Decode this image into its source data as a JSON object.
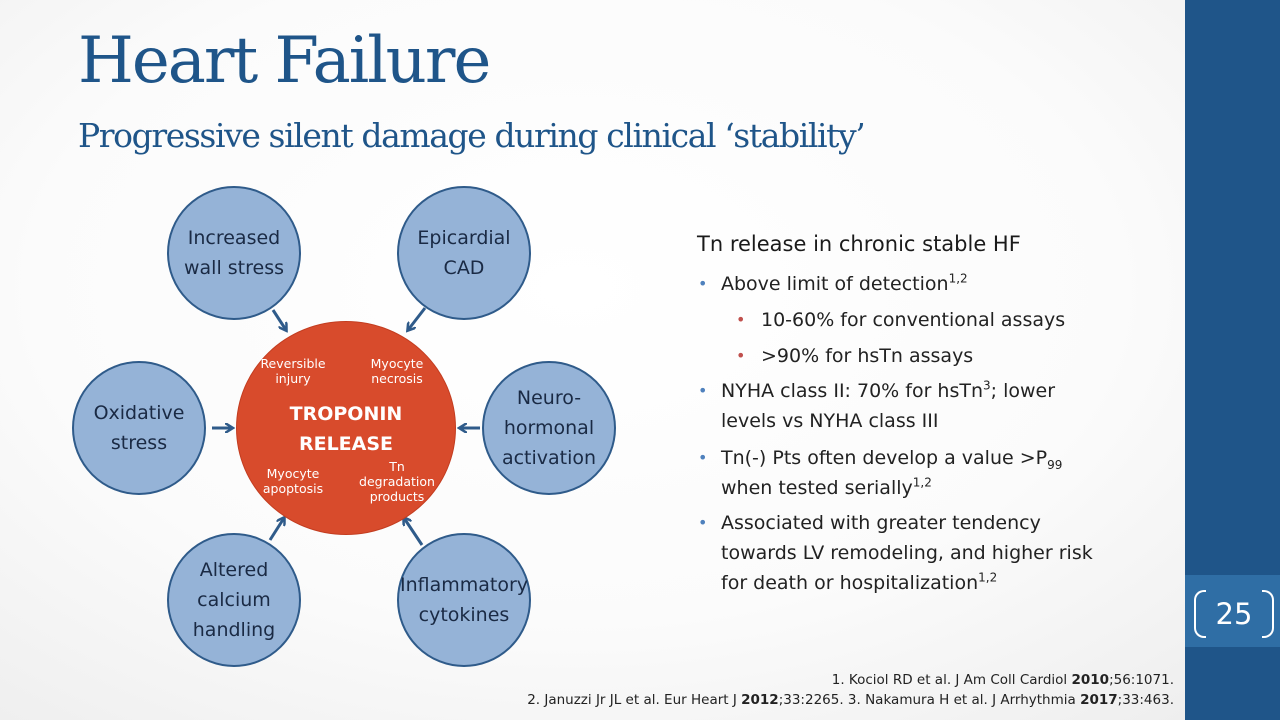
{
  "slide": {
    "title": "Heart Failure",
    "subtitle": "Progressive silent damage during clinical ‘stability’",
    "page_number": "25"
  },
  "diagram": {
    "center": {
      "label_line1": "TROPONIN",
      "label_line2": "RELEASE",
      "quadrants": [
        "Reversible\ninjury",
        "Myocyte\nnecrosis",
        "Myocyte\napoptosis",
        "Tn\ndegradation\nproducts"
      ]
    },
    "causes": [
      "Increased\nwall stress",
      "Epicardial\nCAD",
      "Oxidative\nstress",
      "Neuro-\nhormonal\nactivation",
      "Altered\ncalcium\nhandling",
      "Inflammatory\ncytokines"
    ]
  },
  "findings": {
    "heading": "Tn release in chronic stable HF",
    "b1": "Above limit of detection",
    "b1_sup": "1,2",
    "b1_sub1": "10-60% for conventional assays",
    "b1_sub2": ">90% for hsTn assays",
    "b2_a": "NYHA class II: 70% for hsTn",
    "b2_sup": "3",
    "b2_b": "; lower",
    "b2_c": "levels vs NYHA class III",
    "b3_a": "Tn(-) Pts often develop a value >P",
    "b3_sub": "99",
    "b3_b": "when tested serially",
    "b3_sup": "1,2",
    "b4_a": "Associated with greater tendency",
    "b4_b": "towards LV remodeling, and higher risk",
    "b4_c": "for death or hospitalization",
    "b4_sup": "1,2"
  },
  "references": {
    "r1_a": "1. Kociol RD et al. J Am Coll Cardiol ",
    "r1_year": "2010",
    "r1_b": ";56:1071.",
    "r2_a": "2. Januzzi Jr JL et al. Eur Heart J ",
    "r2_year": "2012",
    "r2_b": ";33:2265. 3. Nakamura H et al. J Arrhythmia ",
    "r2_year2": "2017",
    "r2_c": ";33:463."
  },
  "colors": {
    "title_blue": "#1f5589",
    "circle_fill": "#95b3d7",
    "center_red": "#d84b2c",
    "sidebar_blue": "#1f5589",
    "bullet_blue": "#4f81bd",
    "bullet_red": "#c0504d"
  }
}
